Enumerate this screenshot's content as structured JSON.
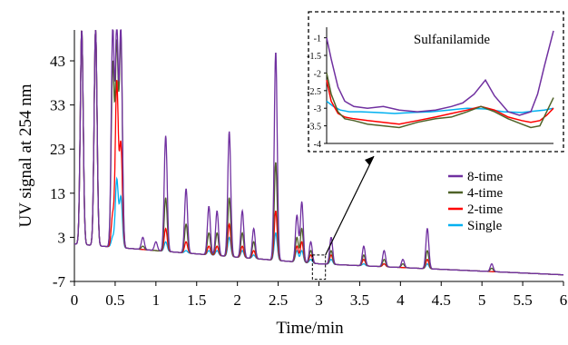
{
  "colors": {
    "eight_time": "#7030a0",
    "four_time": "#4f6228",
    "two_time": "#ff0000",
    "single": "#00b0f0",
    "axis": "#000000",
    "inset_border": "#000000"
  },
  "chart_data": [
    {
      "type": "line",
      "title": "",
      "xlabel": "Time/min",
      "ylabel": "UV signal at 254 nm",
      "xlim": [
        0,
        6
      ],
      "ylim": [
        -7,
        50
      ],
      "x_ticks": [
        "0",
        "0.5",
        "1",
        "1.5",
        "2",
        "2.5",
        "3",
        "3.5",
        "4",
        "4.5",
        "5",
        "5.5",
        "6"
      ],
      "y_ticks": [
        "-7",
        "3",
        "13",
        "23",
        "33",
        "43"
      ],
      "grid": false,
      "legend_position": "right",
      "baseline": {
        "x": [
          0,
          3,
          6
        ],
        "y": [
          1.5,
          -3,
          -5.5
        ]
      },
      "peaks_x": [
        0.09,
        0.26,
        0.47,
        0.52,
        0.57,
        0.84,
        1.0,
        1.12,
        1.37,
        1.65,
        1.75,
        1.9,
        2.06,
        2.2,
        2.47,
        2.73,
        2.79,
        2.9,
        3.15,
        3.55,
        3.8,
        4.03,
        4.33,
        5.12
      ],
      "series": [
        {
          "name": "8-time",
          "color_key": "eight_time",
          "peaks_y": [
            50,
            50,
            50,
            50,
            50,
            3,
            2,
            26,
            14,
            10,
            9,
            27,
            9,
            5,
            45,
            8,
            11,
            2,
            3,
            1,
            0,
            -2,
            5,
            -3
          ]
        },
        {
          "name": "4-time",
          "color_key": "four_time",
          "peaks_y": [
            50,
            50,
            42,
            46,
            48,
            1,
            0,
            12,
            6,
            4,
            4,
            12,
            4,
            2,
            20,
            3,
            5,
            0,
            0,
            -1,
            -2,
            -3,
            0,
            -4
          ]
        },
        {
          "name": "2-time",
          "color_key": "two_time",
          "peaks_y": [
            50,
            50,
            8,
            38,
            24,
            0,
            0,
            5,
            2,
            1,
            1,
            6,
            1,
            0,
            9,
            1,
            2,
            -1,
            -1,
            -2,
            -3,
            -4,
            -2,
            -5
          ]
        },
        {
          "name": "Single",
          "color_key": "single",
          "peaks_y": [
            50,
            50,
            3,
            16,
            12,
            -1,
            -1,
            2,
            0,
            0,
            0,
            3,
            0,
            -1,
            4,
            0,
            0,
            -2,
            -2,
            -3,
            -3,
            -4,
            -3,
            -5
          ]
        }
      ]
    },
    {
      "type": "line",
      "title": "Sulfanilamide",
      "xlabel": "",
      "ylabel": "",
      "xlim": [
        0,
        1
      ],
      "ylim": [
        -4,
        -0.7
      ],
      "y_ticks": [
        "-1",
        "-1.5",
        "-2",
        "-2.5",
        "-3",
        "-3.5",
        "-4"
      ],
      "grid": false,
      "series": [
        {
          "name": "8-time",
          "color_key": "eight_time",
          "x": [
            0,
            0.02,
            0.05,
            0.08,
            0.12,
            0.18,
            0.25,
            0.32,
            0.4,
            0.48,
            0.55,
            0.6,
            0.65,
            0.7,
            0.74,
            0.8,
            0.85,
            0.9,
            0.93,
            0.96,
            1.0
          ],
          "y": [
            -1.0,
            -1.6,
            -2.4,
            -2.8,
            -2.95,
            -3.0,
            -2.95,
            -3.05,
            -3.1,
            -3.05,
            -2.95,
            -2.85,
            -2.6,
            -2.2,
            -2.65,
            -3.1,
            -3.2,
            -3.1,
            -2.6,
            -1.8,
            -0.8
          ]
        },
        {
          "name": "4-time",
          "color_key": "four_time",
          "x": [
            0,
            0.02,
            0.05,
            0.08,
            0.12,
            0.18,
            0.25,
            0.32,
            0.4,
            0.48,
            0.55,
            0.62,
            0.68,
            0.74,
            0.8,
            0.86,
            0.9,
            0.94,
            0.97,
            1.0
          ],
          "y": [
            -2.0,
            -2.6,
            -3.1,
            -3.3,
            -3.35,
            -3.45,
            -3.5,
            -3.55,
            -3.4,
            -3.3,
            -3.25,
            -3.1,
            -2.95,
            -3.1,
            -3.3,
            -3.45,
            -3.55,
            -3.5,
            -3.1,
            -2.7
          ]
        },
        {
          "name": "2-time",
          "color_key": "two_time",
          "x": [
            0,
            0.02,
            0.05,
            0.08,
            0.12,
            0.18,
            0.25,
            0.32,
            0.4,
            0.48,
            0.55,
            0.62,
            0.68,
            0.74,
            0.8,
            0.86,
            0.9,
            0.94,
            0.97,
            1.0
          ],
          "y": [
            -2.2,
            -2.8,
            -3.15,
            -3.25,
            -3.3,
            -3.35,
            -3.4,
            -3.45,
            -3.35,
            -3.25,
            -3.15,
            -3.05,
            -2.95,
            -3.05,
            -3.25,
            -3.35,
            -3.4,
            -3.35,
            -3.2,
            -3.0
          ]
        },
        {
          "name": "Single",
          "color_key": "single",
          "x": [
            0,
            0.03,
            0.06,
            0.1,
            0.15,
            0.22,
            0.3,
            0.38,
            0.46,
            0.54,
            0.62,
            0.7,
            0.78,
            0.86,
            0.92,
            0.96,
            1.0
          ],
          "y": [
            -2.8,
            -2.95,
            -3.05,
            -3.1,
            -3.1,
            -3.12,
            -3.15,
            -3.12,
            -3.1,
            -3.05,
            -3.0,
            -3.02,
            -3.1,
            -3.12,
            -3.08,
            -3.05,
            -3.0
          ]
        }
      ]
    }
  ]
}
